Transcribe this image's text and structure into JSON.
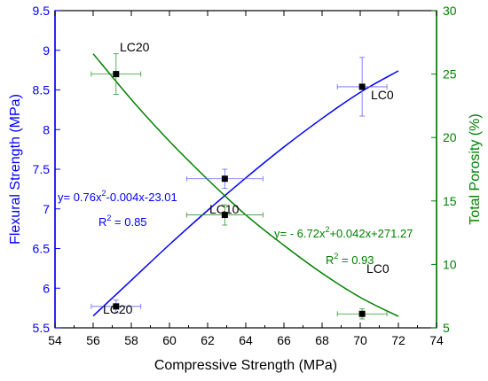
{
  "chart_data": {
    "type": "scatter",
    "xlabel": "Compressive Strength (MPa)",
    "ylabel_left": "Flexural Strength (MPa)",
    "ylabel_right": "Total Porosity (%)",
    "xlim": [
      54,
      74
    ],
    "ylim_left": [
      5.5,
      9.5
    ],
    "ylim_right": [
      5,
      30
    ],
    "x_ticks": [
      "54",
      "56",
      "58",
      "60",
      "62",
      "64",
      "66",
      "68",
      "70",
      "72",
      "74"
    ],
    "y_left_ticks": [
      "5.5",
      "6",
      "6.5",
      "7",
      "7.5",
      "8",
      "8.5",
      "9",
      "9.5"
    ],
    "y_right_ticks": [
      "5",
      "10",
      "15",
      "20",
      "25",
      "30"
    ],
    "colors": {
      "flexural": "#0000ff",
      "porosity": "#008000",
      "points": "#000000",
      "axis": "#000000"
    },
    "series": [
      {
        "name": "Flexural Strength",
        "axis": "left",
        "points": [
          {
            "label": "LC20",
            "x": 57.2,
            "y": 5.77,
            "xerr": 1.3,
            "yerr": 0.08
          },
          {
            "label": "",
            "x": 62.9,
            "y": 7.38,
            "xerr": 2.0,
            "yerr": 0.12
          },
          {
            "label": "LC0",
            "x": 70.1,
            "y": 8.54,
            "xerr": 1.3,
            "yerr": 0.37
          }
        ],
        "fit": {
          "equation_prefix": "y= 0.76x",
          "equation_suffix": "-0.004x-23.01",
          "r2_prefix": "R",
          "r2_suffix": " = 0.85",
          "x_range": [
            56,
            72
          ],
          "points": [
            [
              56,
              5.65
            ],
            [
              58,
              6.1
            ],
            [
              60,
              6.55
            ],
            [
              62,
              6.98
            ],
            [
              64,
              7.39
            ],
            [
              66,
              7.78
            ],
            [
              68,
              8.14
            ],
            [
              70,
              8.47
            ],
            [
              72,
              8.74
            ]
          ]
        }
      },
      {
        "name": "Total Porosity",
        "axis": "right",
        "points": [
          {
            "label": "LC20",
            "x": 57.2,
            "y": 25.0,
            "xerr": 1.3,
            "yerr": 1.6
          },
          {
            "label": "LC10",
            "x": 62.9,
            "y": 13.9,
            "xerr": 2.0,
            "yerr": 0.8
          },
          {
            "label": "LC0",
            "x": 70.1,
            "y": 6.1,
            "xerr": 1.3,
            "yerr": 0.4
          }
        ],
        "fit": {
          "equation_prefix": "y= - 6.72x",
          "equation_suffix": "+0.042x+271.27",
          "r2_prefix": "R",
          "r2_suffix": " = 0.93",
          "x_range": [
            56,
            72
          ],
          "points": [
            [
              56,
              26.6
            ],
            [
              58,
              23.0
            ],
            [
              60,
              19.7
            ],
            [
              62,
              16.7
            ],
            [
              64,
              13.9
            ],
            [
              66,
              11.5
            ],
            [
              68,
              9.3
            ],
            [
              70,
              7.4
            ],
            [
              72,
              5.9
            ]
          ]
        }
      }
    ],
    "extra_labels": [
      "LC10",
      "LC20",
      "LC0"
    ],
    "grid": false,
    "legend": "none"
  }
}
